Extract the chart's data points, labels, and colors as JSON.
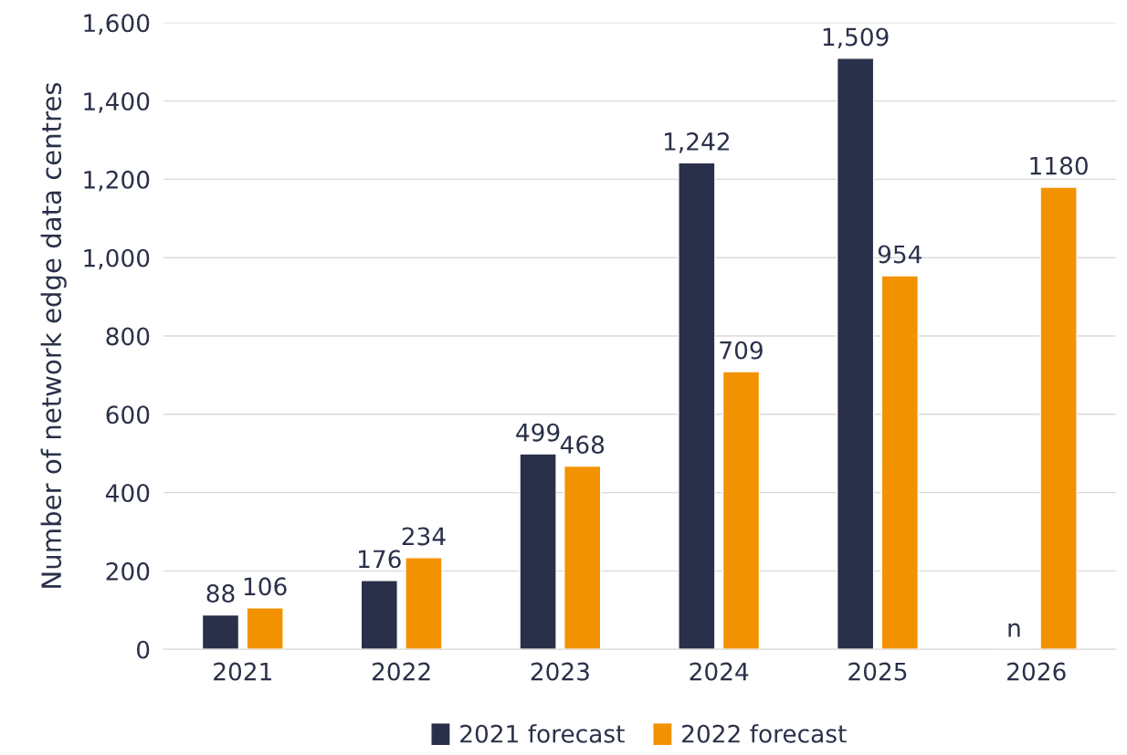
{
  "chart_data": {
    "type": "bar",
    "ylabel": "Number of network edge data centres",
    "categories": [
      "2021",
      "2022",
      "2023",
      "2024",
      "2025",
      "2026"
    ],
    "series": [
      {
        "name": "2021 forecast",
        "color": "#2a3049",
        "values": [
          88,
          176,
          499,
          1242,
          1509,
          null
        ],
        "value_labels": [
          "88",
          "176",
          "499",
          "1,242",
          "1,509",
          "n"
        ]
      },
      {
        "name": "2022 forecast",
        "color": "#f39200",
        "values": [
          106,
          234,
          468,
          709,
          954,
          1180
        ],
        "value_labels": [
          "106",
          "234",
          "468",
          "709",
          "954",
          "1180"
        ]
      }
    ],
    "ylim": [
      0,
      1600
    ],
    "yticks": [
      0,
      200,
      400,
      600,
      800,
      {
        "value": 1000,
        "label": "1,000"
      },
      {
        "value": 1200,
        "label": "1,200"
      },
      {
        "value": 1400,
        "label": "1,400"
      },
      {
        "value": 1600,
        "label": "1,600"
      }
    ],
    "grid": "y",
    "legend": "bottom"
  }
}
